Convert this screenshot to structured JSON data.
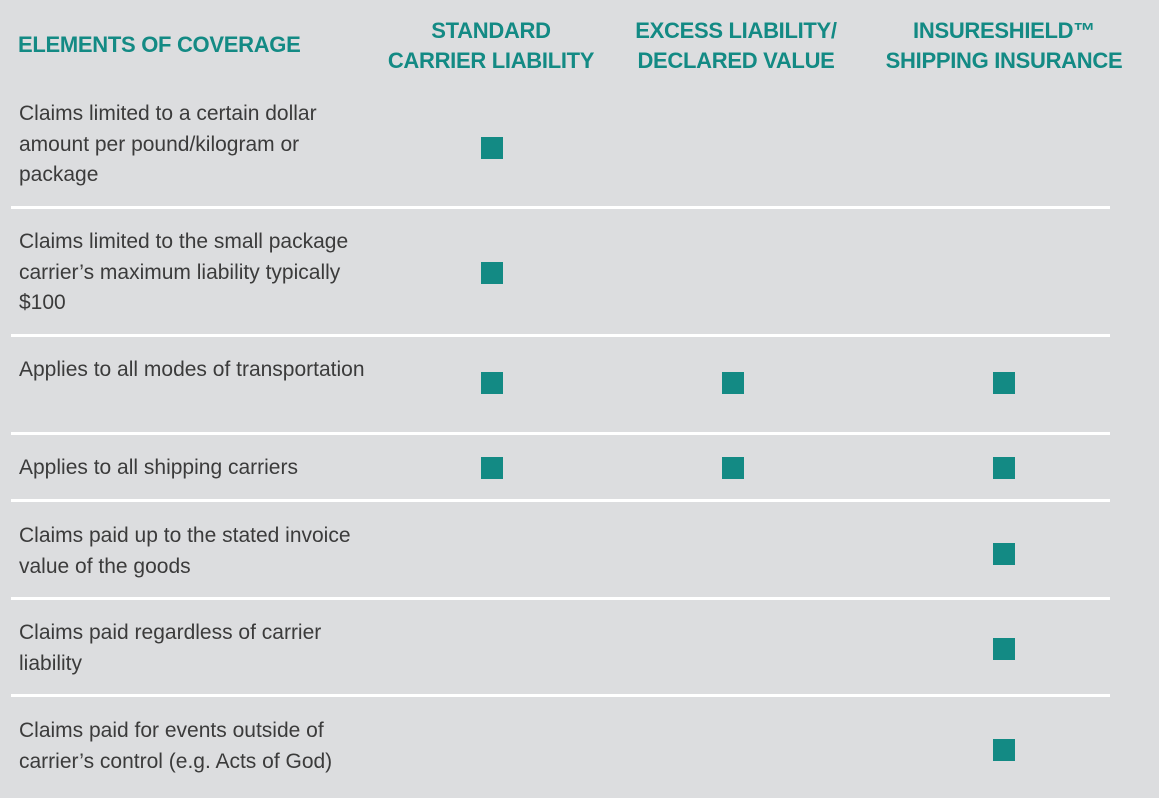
{
  "colors": {
    "background": "#dcdddf",
    "accent": "#138a84",
    "text": "#3b3b3b",
    "separator": "#ffffff"
  },
  "header": {
    "elements": "ELEMENTS OF COVERAGE",
    "columns": [
      "STANDARD\nCARRIER LIABILITY",
      "EXCESS LIABILITY/\nDECLARED VALUE",
      "INSURESHIELD™\nSHIPPING INSURANCE"
    ]
  },
  "mark_icon": "filled-square-icon",
  "rows": [
    {
      "label": "Claims limited to a certain dollar amount per pound/kilogram or package",
      "marks": [
        true,
        false,
        false
      ]
    },
    {
      "label": "Claims limited to the small package carrier’s maximum liability typically $100",
      "marks": [
        true,
        false,
        false
      ]
    },
    {
      "label": "Applies to all modes of transportation",
      "marks": [
        true,
        true,
        true
      ]
    },
    {
      "label": "Applies to all shipping carriers",
      "marks": [
        true,
        true,
        true
      ]
    },
    {
      "label": "Claims paid up to the stated invoice value of the goods",
      "marks": [
        false,
        false,
        true
      ]
    },
    {
      "label": "Claims paid regardless of carrier liability",
      "marks": [
        false,
        false,
        true
      ]
    },
    {
      "label": "Claims paid for events outside of carrier’s control (e.g. Acts of God)",
      "marks": [
        false,
        false,
        true
      ]
    }
  ]
}
